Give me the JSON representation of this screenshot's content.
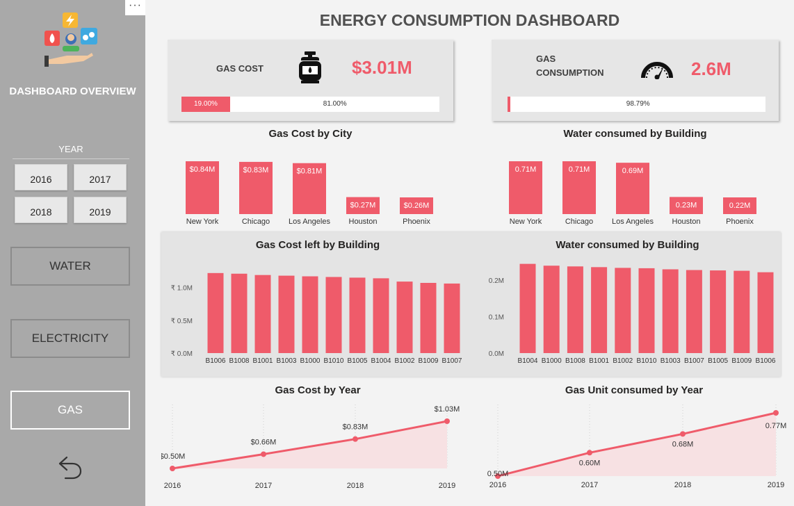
{
  "sidebar": {
    "menu_dots": "···",
    "overview_label": "DASHBOARD OVERVIEW",
    "year_label": "YEAR",
    "years": [
      "2016",
      "2017",
      "2018",
      "2019"
    ],
    "nav": [
      "WATER",
      "ELECTRICITY",
      "GAS"
    ],
    "active_nav": "GAS",
    "back_icon": "back-arrow-icon",
    "logo_icon": "energy-hand-icon"
  },
  "header": {
    "title": "ENERGY CONSUMPTION DASHBOARD"
  },
  "colors": {
    "accent": "#ef5b6a",
    "accent_fill": "#f7e1e3",
    "sidebar": "#a9a9a9"
  },
  "kpi": {
    "gas_cost": {
      "label": "GAS COST",
      "value": "$3.01M",
      "icon": "gas-cylinder-icon",
      "fill_pct": 19.0,
      "fill_label": "19.00%",
      "rest_label": "81.00%"
    },
    "gas_consumption": {
      "label_line1": "GAS",
      "label_line2": "CONSUMPTION",
      "value": "2.6M",
      "icon": "speedometer-icon",
      "fill_pct": 1.21,
      "rest_label": "98.79%"
    }
  },
  "chart_data": [
    {
      "type": "bar",
      "title": "Gas Cost by City",
      "categories": [
        "New York",
        "Chicago",
        "Los Angeles",
        "Houston",
        "Phoenix"
      ],
      "values": [
        0.84,
        0.83,
        0.81,
        0.27,
        0.26
      ],
      "data_labels": [
        "$0.84M",
        "$0.83M",
        "$0.81M",
        "$0.27M",
        "$0.26M"
      ],
      "ylim": [
        0,
        0.84
      ],
      "grid": false
    },
    {
      "type": "bar",
      "title": "Water consumed by Building",
      "categories": [
        "New York",
        "Chicago",
        "Los Angeles",
        "Houston",
        "Phoenix"
      ],
      "values": [
        0.71,
        0.71,
        0.69,
        0.23,
        0.22
      ],
      "data_labels": [
        "0.71M",
        "0.71M",
        "0.69M",
        "0.23M",
        "0.22M"
      ],
      "ylim": [
        0,
        0.71
      ],
      "grid": false
    },
    {
      "type": "bar",
      "title": "Gas Cost left by Building",
      "categories": [
        "B1006",
        "B1008",
        "B1001",
        "B1003",
        "B1000",
        "B1010",
        "B1005",
        "B1004",
        "B1002",
        "B1009",
        "B1007"
      ],
      "values": [
        1.22,
        1.21,
        1.19,
        1.18,
        1.17,
        1.16,
        1.15,
        1.14,
        1.09,
        1.07,
        1.06
      ],
      "yticks": [
        0,
        0.5,
        1.0
      ],
      "ytick_labels": [
        "₹ 0.0M",
        "₹ 0.5M",
        "₹ 1.0M"
      ],
      "ylim": [
        0,
        1.25
      ],
      "grid": false
    },
    {
      "type": "bar",
      "title": "Water consumed by Building",
      "categories": [
        "B1004",
        "B1000",
        "B1008",
        "B1001",
        "B1002",
        "B1010",
        "B1003",
        "B1007",
        "B1005",
        "B1009",
        "B1006"
      ],
      "values": [
        0.245,
        0.24,
        0.238,
        0.236,
        0.234,
        0.233,
        0.23,
        0.228,
        0.227,
        0.226,
        0.222
      ],
      "yticks": [
        0,
        0.1,
        0.2
      ],
      "ytick_labels": [
        "0.0M",
        "0.1M",
        "0.2M"
      ],
      "ylim": [
        0,
        0.25
      ],
      "grid": false
    },
    {
      "type": "area",
      "title": "Gas Cost by Year",
      "x": [
        "2016",
        "2017",
        "2018",
        "2019"
      ],
      "values": [
        0.5,
        0.66,
        0.83,
        1.03
      ],
      "data_labels": [
        "$0.50M",
        "$0.66M",
        "$0.83M",
        "$1.03M"
      ],
      "ylim": [
        0.5,
        1.03
      ],
      "grid": "vertical dotted"
    },
    {
      "type": "area",
      "title": "Gas Unit consumed by Year",
      "x": [
        "2016",
        "2017",
        "2018",
        "2019"
      ],
      "values": [
        0.5,
        0.6,
        0.68,
        0.77
      ],
      "data_labels": [
        "0.50M",
        "0.60M",
        "0.68M",
        "0.77M"
      ],
      "ylim": [
        0.5,
        0.77
      ],
      "grid": "vertical dotted"
    }
  ]
}
